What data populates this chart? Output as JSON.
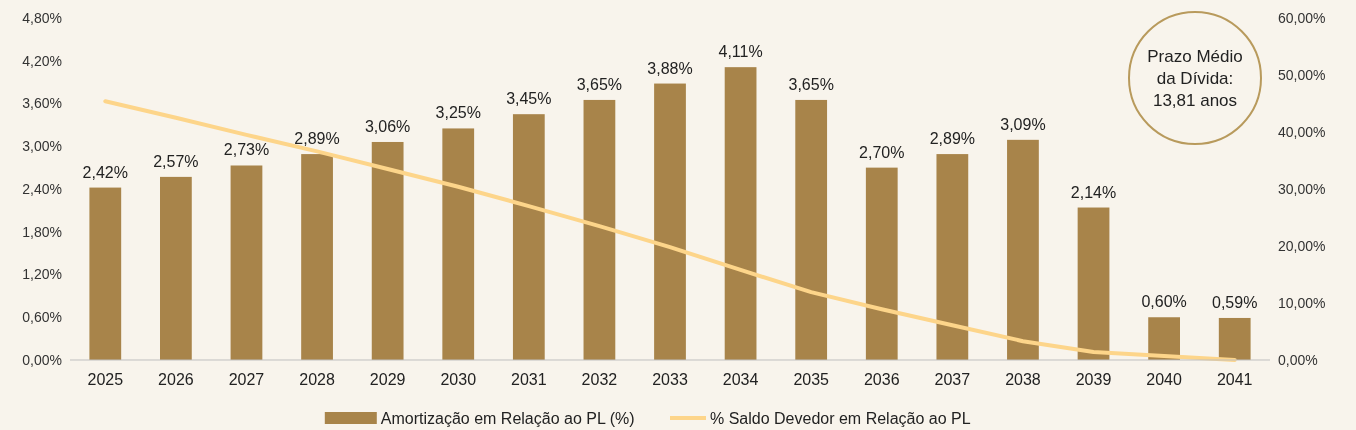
{
  "chart_data": {
    "type": "bar",
    "categories": [
      "2025",
      "2026",
      "2027",
      "2028",
      "2029",
      "2030",
      "2031",
      "2032",
      "2033",
      "2034",
      "2035",
      "2036",
      "2037",
      "2038",
      "2039",
      "2040",
      "2041"
    ],
    "series": [
      {
        "name": "Amortização em Relação ao PL (%)",
        "color": "#a8844a",
        "values": [
          2.42,
          2.57,
          2.73,
          2.89,
          3.06,
          3.25,
          3.45,
          3.65,
          3.88,
          4.11,
          3.65,
          2.7,
          2.89,
          3.09,
          2.14,
          0.6,
          0.59
        ],
        "value_labels": [
          "2,42%",
          "2,57%",
          "2,73%",
          "2,89%",
          "3,06%",
          "3,25%",
          "3,45%",
          "3,65%",
          "3,88%",
          "4,11%",
          "3,65%",
          "2,70%",
          "2,89%",
          "3,09%",
          "2,14%",
          "0,60%",
          "0,59%"
        ]
      },
      {
        "name": "% Saldo Devedor em Relação ao PL",
        "type": "line",
        "axis": "y2",
        "color": "#fdd58a",
        "values": [
          45.4,
          42.5,
          39.5,
          36.6,
          33.5,
          30.4,
          27.0,
          23.5,
          19.8,
          15.8,
          11.9,
          8.9,
          6.1,
          3.3,
          1.4,
          0.7,
          0.0
        ]
      }
    ],
    "ylim": [
      0,
      4.8
    ],
    "yticks": [
      {
        "value": 0,
        "label": "0,00%"
      },
      {
        "value": 0.6,
        "label": "0,60%"
      },
      {
        "value": 1.2,
        "label": "1,20%"
      },
      {
        "value": 1.8,
        "label": "1,80%"
      },
      {
        "value": 2.4,
        "label": "2,40%"
      },
      {
        "value": 3.0,
        "label": "3,00%"
      },
      {
        "value": 3.6,
        "label": "3,60%"
      },
      {
        "value": 4.2,
        "label": "4,20%"
      },
      {
        "value": 4.8,
        "label": "4,80%"
      }
    ],
    "y2lim": [
      0,
      60
    ],
    "y2ticks": [
      {
        "value": 0,
        "label": "0,00%"
      },
      {
        "value": 10,
        "label": "10,00%"
      },
      {
        "value": 20,
        "label": "20,00%"
      },
      {
        "value": 30,
        "label": "30,00%"
      },
      {
        "value": 40,
        "label": "40,00%"
      },
      {
        "value": 50,
        "label": "50,00%"
      },
      {
        "value": 60,
        "label": "60,00%"
      }
    ],
    "annotations": [
      "Prazo Médio da Dívida: 13,81 anos"
    ],
    "legend": "bottom",
    "grid": false,
    "line_style": "solid",
    "marker": "none"
  }
}
